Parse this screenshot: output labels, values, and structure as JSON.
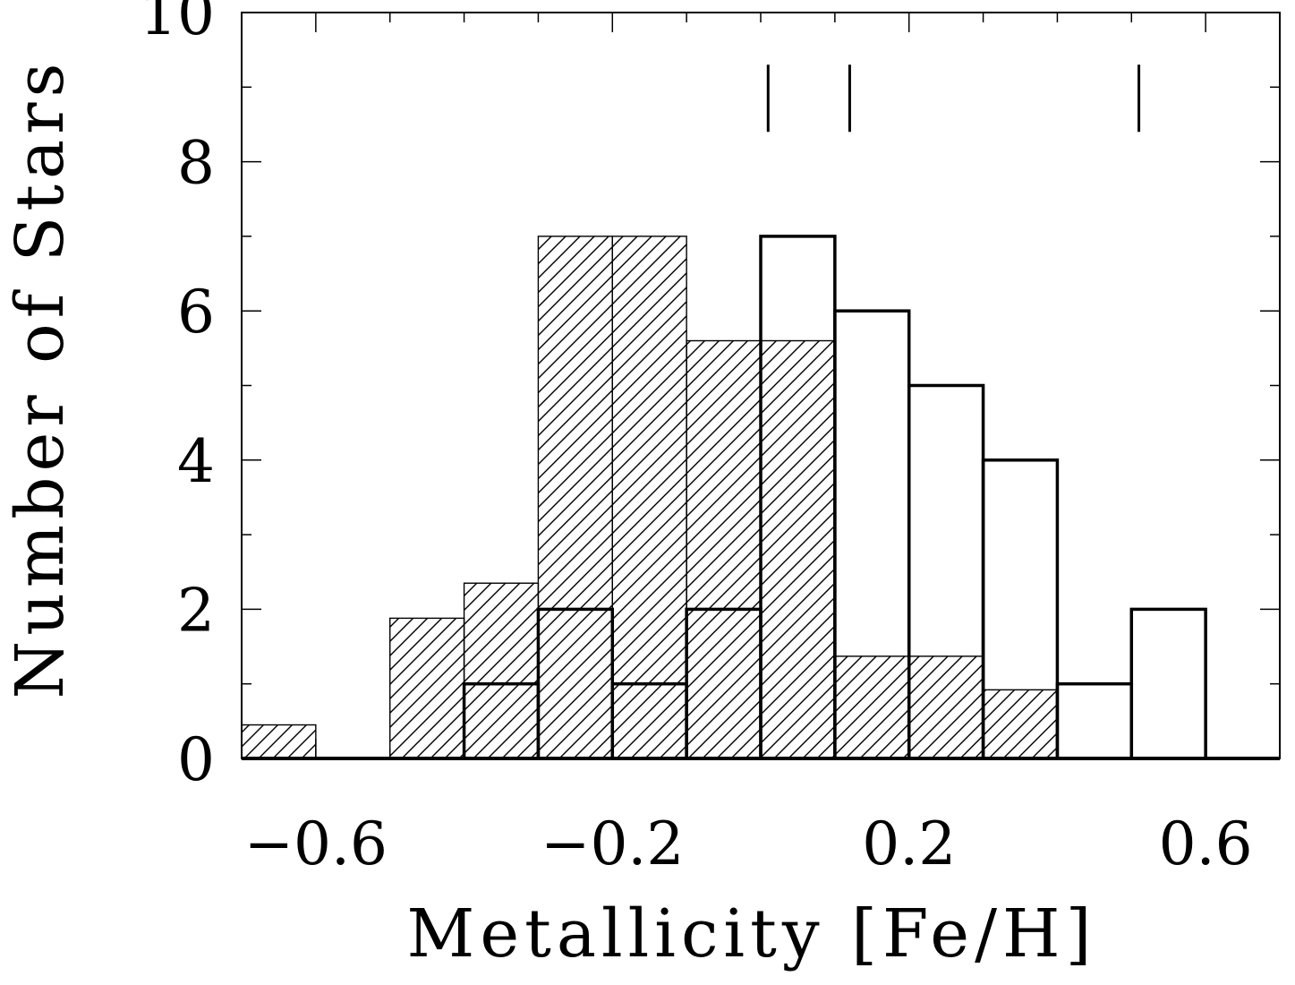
{
  "chart_data": {
    "type": "bar",
    "subtype": "histogram",
    "xlabel": "Metallicity [Fe/H]",
    "ylabel": "Number of Stars",
    "xlim": [
      -0.7,
      0.7
    ],
    "ylim": [
      0,
      10
    ],
    "bin_width": 0.1,
    "xticks": [
      {
        "value": -0.6,
        "label": "−0.6"
      },
      {
        "value": -0.2,
        "label": "−0.2"
      },
      {
        "value": 0.2,
        "label": "0.2"
      },
      {
        "value": 0.6,
        "label": "0.6"
      }
    ],
    "yticks": [
      {
        "value": 0,
        "label": "0"
      },
      {
        "value": 2,
        "label": "2"
      },
      {
        "value": 4,
        "label": "4"
      },
      {
        "value": 6,
        "label": "6"
      },
      {
        "value": 8,
        "label": "8"
      },
      {
        "value": 10,
        "label": "10"
      }
    ],
    "x_minor_tick_step": 0.1,
    "y_minor_tick_step": 1,
    "grid": false,
    "legend": "none",
    "series": [
      {
        "style": "hatched",
        "bins": [
          {
            "x0": -0.7,
            "x1": -0.6,
            "count": 0.45
          },
          {
            "x0": -0.6,
            "x1": -0.5,
            "count": 0
          },
          {
            "x0": -0.5,
            "x1": -0.4,
            "count": 1.88
          },
          {
            "x0": -0.4,
            "x1": -0.3,
            "count": 2.35
          },
          {
            "x0": -0.3,
            "x1": -0.2,
            "count": 7.0
          },
          {
            "x0": -0.2,
            "x1": -0.1,
            "count": 7.0
          },
          {
            "x0": -0.1,
            "x1": 0.0,
            "count": 5.6
          },
          {
            "x0": 0.0,
            "x1": 0.1,
            "count": 5.6
          },
          {
            "x0": 0.1,
            "x1": 0.2,
            "count": 1.37
          },
          {
            "x0": 0.2,
            "x1": 0.3,
            "count": 1.37
          },
          {
            "x0": 0.3,
            "x1": 0.4,
            "count": 0.92
          }
        ]
      },
      {
        "style": "open",
        "bins": [
          {
            "x0": -0.4,
            "x1": -0.3,
            "count": 1
          },
          {
            "x0": -0.3,
            "x1": -0.2,
            "count": 2
          },
          {
            "x0": -0.2,
            "x1": -0.1,
            "count": 1
          },
          {
            "x0": -0.1,
            "x1": 0.0,
            "count": 2
          },
          {
            "x0": 0.0,
            "x1": 0.1,
            "count": 7
          },
          {
            "x0": 0.1,
            "x1": 0.2,
            "count": 6
          },
          {
            "x0": 0.2,
            "x1": 0.3,
            "count": 5
          },
          {
            "x0": 0.3,
            "x1": 0.4,
            "count": 4
          },
          {
            "x0": 0.4,
            "x1": 0.5,
            "count": 1
          },
          {
            "x0": 0.5,
            "x1": 0.6,
            "count": 2
          }
        ]
      }
    ],
    "markers": [
      {
        "x": 0.01,
        "y0": 8.4,
        "y1": 9.3
      },
      {
        "x": 0.12,
        "y0": 8.4,
        "y1": 9.3
      },
      {
        "x": 0.51,
        "y0": 8.4,
        "y1": 9.3
      }
    ]
  }
}
